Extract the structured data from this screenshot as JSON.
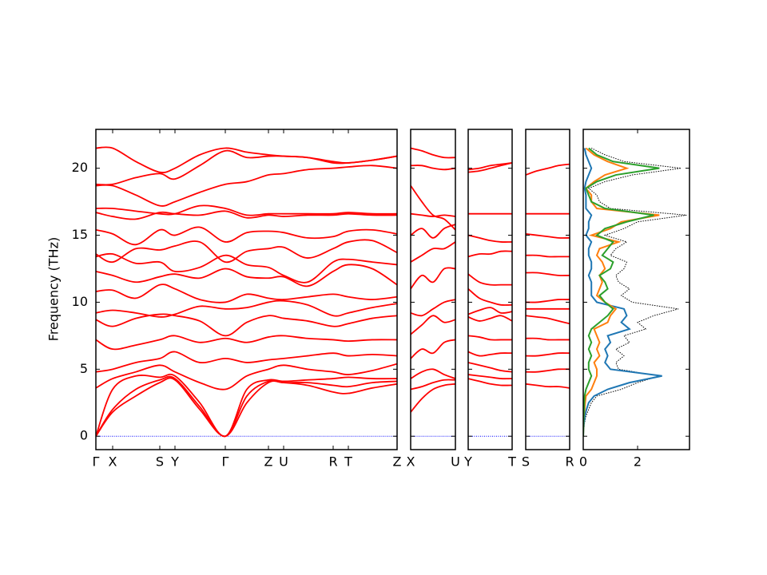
{
  "chart_data": [
    {
      "type": "line",
      "ylabel": "Frequency (THz)",
      "color": "#ff0000",
      "ylim": [
        -1,
        22.9
      ],
      "yticks": [
        0,
        5,
        10,
        15,
        20
      ],
      "xlim": [
        0,
        377
      ],
      "xticks": [
        {
          "value": 0,
          "label": "Γ"
        },
        {
          "value": 21,
          "label": "X"
        },
        {
          "value": 80,
          "label": "S"
        },
        {
          "value": 99,
          "label": "Y"
        },
        {
          "value": 162,
          "label": "Γ"
        },
        {
          "value": 216,
          "label": "Z"
        },
        {
          "value": 235,
          "label": "U"
        },
        {
          "value": 297,
          "label": "R"
        },
        {
          "value": 316,
          "label": "T"
        },
        {
          "value": 377,
          "label": "Z"
        }
      ],
      "x": [
        0,
        21,
        50,
        80,
        99,
        130,
        162,
        189,
        216,
        235,
        265,
        297,
        316,
        346,
        377
      ],
      "series": [
        {
          "values": [
            0,
            1.8,
            3.0,
            4.0,
            4.2,
            2.0,
            0,
            2.5,
            4.0,
            4.0,
            3.8,
            3.3,
            3.2,
            3.6,
            3.9
          ]
        },
        {
          "values": [
            0,
            2.0,
            3.5,
            4.2,
            4.3,
            2.2,
            0,
            3.0,
            4.1,
            4.0,
            4.0,
            3.8,
            3.7,
            4.0,
            4.1
          ]
        },
        {
          "values": [
            0,
            3.5,
            4.5,
            4.4,
            4.5,
            2.5,
            0,
            3.5,
            4.2,
            4.1,
            4.2,
            4.3,
            4.4,
            4.3,
            4.3
          ]
        },
        {
          "values": [
            3.6,
            4.3,
            4.8,
            5.3,
            4.8,
            4.0,
            3.5,
            4.5,
            5.0,
            5.3,
            5.0,
            4.8,
            4.6,
            4.9,
            5.4
          ]
        },
        {
          "values": [
            4.8,
            5.0,
            5.5,
            5.8,
            6.3,
            5.5,
            5.8,
            5.5,
            5.7,
            5.8,
            6.0,
            6.2,
            6.0,
            6.1,
            6.0
          ]
        },
        {
          "values": [
            7.2,
            6.5,
            6.8,
            7.2,
            7.5,
            7.0,
            7.3,
            7.0,
            7.4,
            7.5,
            7.3,
            7.2,
            7.1,
            7.2,
            7.2
          ]
        },
        {
          "values": [
            8.7,
            8.2,
            8.8,
            9.1,
            9.0,
            8.6,
            7.5,
            8.5,
            9.0,
            8.8,
            8.6,
            8.2,
            8.4,
            8.8,
            9.0
          ]
        },
        {
          "values": [
            9.2,
            9.4,
            9.2,
            8.9,
            9.1,
            9.7,
            9.5,
            9.6,
            10.0,
            10.1,
            9.8,
            9.0,
            9.2,
            9.6,
            9.9
          ]
        },
        {
          "values": [
            10.8,
            10.9,
            10.3,
            11.3,
            11.0,
            10.2,
            10.0,
            10.6,
            10.3,
            10.2,
            10.4,
            10.6,
            10.4,
            10.2,
            10.4
          ]
        },
        {
          "values": [
            12.3,
            12.0,
            11.5,
            11.9,
            12.1,
            11.8,
            12.5,
            11.9,
            11.8,
            11.9,
            11.2,
            12.3,
            12.8,
            12.5,
            11.3
          ]
        },
        {
          "values": [
            13.4,
            13.6,
            12.9,
            13.0,
            12.3,
            12.6,
            13.5,
            12.8,
            12.6,
            12.0,
            11.5,
            13.0,
            13.2,
            13.0,
            12.8
          ]
        },
        {
          "values": [
            13.6,
            13.0,
            14.0,
            13.9,
            14.2,
            14.5,
            13.0,
            13.8,
            14.0,
            14.1,
            13.3,
            14.0,
            14.5,
            14.6,
            13.7
          ]
        },
        {
          "values": [
            15.4,
            15.1,
            14.3,
            15.4,
            15.0,
            15.6,
            14.5,
            15.2,
            15.3,
            15.2,
            14.8,
            14.9,
            15.3,
            15.4,
            15.1
          ]
        },
        {
          "values": [
            16.7,
            16.4,
            16.2,
            16.7,
            16.6,
            16.5,
            16.8,
            16.3,
            16.5,
            16.4,
            16.5,
            16.5,
            16.6,
            16.5,
            16.5
          ]
        },
        {
          "values": [
            17.0,
            17.0,
            16.8,
            16.6,
            16.6,
            17.2,
            17.0,
            16.5,
            16.6,
            16.6,
            16.6,
            16.6,
            16.7,
            16.6,
            16.6
          ]
        },
        {
          "values": [
            18.7,
            18.7,
            18.0,
            17.2,
            17.5,
            18.2,
            18.8,
            19.0,
            19.5,
            19.6,
            19.9,
            20.0,
            20.1,
            20.2,
            20.0
          ]
        },
        {
          "values": [
            18.8,
            18.8,
            19.3,
            19.6,
            19.2,
            20.2,
            21.3,
            20.8,
            20.9,
            20.9,
            20.8,
            20.5,
            20.4,
            20.6,
            20.9
          ]
        },
        {
          "values": [
            21.5,
            21.5,
            20.5,
            19.7,
            20.0,
            21.0,
            21.5,
            21.2,
            21.0,
            20.9,
            20.8,
            20.4,
            20.4,
            20.6,
            20.9
          ]
        }
      ]
    },
    {
      "type": "line",
      "color": "#ff0000",
      "xlim": [
        0,
        56
      ],
      "xticks": [
        {
          "value": 0,
          "label": "X"
        },
        {
          "value": 56,
          "label": "U"
        }
      ],
      "x": [
        0,
        14,
        28,
        42,
        56
      ],
      "series": [
        {
          "values": [
            1.8,
            2.8,
            3.5,
            3.8,
            3.9
          ]
        },
        {
          "values": [
            3.5,
            3.7,
            4.0,
            4.2,
            4.2
          ]
        },
        {
          "values": [
            4.3,
            4.8,
            5.0,
            4.6,
            4.3
          ]
        },
        {
          "values": [
            5.8,
            6.5,
            6.2,
            7.0,
            7.2
          ]
        },
        {
          "values": [
            7.6,
            8.3,
            9.0,
            8.5,
            8.7
          ]
        },
        {
          "values": [
            9.2,
            9.0,
            9.5,
            10.0,
            10.2
          ]
        },
        {
          "values": [
            11.0,
            12.0,
            11.5,
            12.5,
            12.5
          ]
        },
        {
          "values": [
            13.0,
            13.5,
            14.0,
            14.0,
            14.5
          ]
        },
        {
          "values": [
            15.0,
            15.5,
            14.8,
            15.5,
            15.8
          ]
        },
        {
          "values": [
            16.6,
            16.5,
            16.4,
            16.5,
            16.4
          ]
        },
        {
          "values": [
            18.7,
            17.5,
            16.5,
            16.2,
            15.4
          ]
        },
        {
          "values": [
            21.5,
            21.3,
            21.0,
            20.8,
            20.8
          ]
        },
        {
          "values": [
            20.2,
            20.2,
            20.0,
            19.9,
            20.0
          ]
        }
      ]
    },
    {
      "type": "line",
      "color": "#ff0000",
      "xlim": [
        0,
        55
      ],
      "xticks": [
        {
          "value": 0,
          "label": "Y"
        },
        {
          "value": 55,
          "label": "T"
        }
      ],
      "x": [
        0,
        14,
        28,
        41,
        55
      ],
      "series": [
        {
          "values": [
            4.3,
            4.1,
            3.9,
            3.8,
            3.8
          ]
        },
        {
          "values": [
            4.6,
            4.5,
            4.4,
            4.3,
            4.3
          ]
        },
        {
          "values": [
            5.5,
            5.3,
            5.1,
            4.9,
            4.8
          ]
        },
        {
          "values": [
            6.3,
            6.0,
            6.1,
            6.2,
            6.2
          ]
        },
        {
          "values": [
            7.5,
            7.4,
            7.2,
            7.2,
            7.2
          ]
        },
        {
          "values": [
            8.9,
            8.6,
            8.8,
            9.0,
            8.6
          ]
        },
        {
          "values": [
            9.1,
            9.4,
            9.6,
            9.2,
            9.3
          ]
        },
        {
          "values": [
            11.0,
            10.3,
            10.0,
            9.8,
            9.8
          ]
        },
        {
          "values": [
            12.1,
            11.5,
            11.3,
            11.3,
            11.3
          ]
        },
        {
          "values": [
            13.4,
            13.6,
            13.6,
            13.8,
            13.8
          ]
        },
        {
          "values": [
            15.0,
            14.8,
            14.6,
            14.5,
            14.5
          ]
        },
        {
          "values": [
            16.6,
            16.6,
            16.6,
            16.6,
            16.6
          ]
        },
        {
          "values": [
            19.7,
            19.8,
            20.0,
            20.2,
            20.4
          ]
        },
        {
          "values": [
            19.9,
            20.0,
            20.2,
            20.3,
            20.4
          ]
        }
      ]
    },
    {
      "type": "line",
      "color": "#ff0000",
      "xlim": [
        0,
        55
      ],
      "xticks": [
        {
          "value": 0,
          "label": "S"
        },
        {
          "value": 55,
          "label": "R"
        }
      ],
      "x": [
        0,
        14,
        28,
        41,
        55
      ],
      "series": [
        {
          "values": [
            3.9,
            3.8,
            3.7,
            3.7,
            3.6
          ]
        },
        {
          "values": [
            4.8,
            4.8,
            4.9,
            5.0,
            5.0
          ]
        },
        {
          "values": [
            6.0,
            6.0,
            6.1,
            6.2,
            6.2
          ]
        },
        {
          "values": [
            7.3,
            7.3,
            7.2,
            7.2,
            7.2
          ]
        },
        {
          "values": [
            9.0,
            8.9,
            8.8,
            8.6,
            8.4
          ]
        },
        {
          "values": [
            9.5,
            9.5,
            9.5,
            9.5,
            9.5
          ]
        },
        {
          "values": [
            10.0,
            10.0,
            10.1,
            10.2,
            10.2
          ]
        },
        {
          "values": [
            12.2,
            12.2,
            12.1,
            12.0,
            12.0
          ]
        },
        {
          "values": [
            13.5,
            13.5,
            13.4,
            13.4,
            13.4
          ]
        },
        {
          "values": [
            15.1,
            15.0,
            14.9,
            14.8,
            14.8
          ]
        },
        {
          "values": [
            16.6,
            16.6,
            16.6,
            16.6,
            16.6
          ]
        },
        {
          "values": [
            19.5,
            19.8,
            20.0,
            20.2,
            20.3
          ]
        }
      ]
    },
    {
      "type": "line",
      "xlim": [
        0,
        3.91
      ],
      "xticks": [
        0,
        2
      ],
      "y": [
        0,
        0.5,
        1,
        1.5,
        2,
        2.5,
        3,
        3.5,
        4,
        4.5,
        5,
        5.5,
        6,
        6.5,
        7,
        7.5,
        8,
        8.5,
        9,
        9.5,
        10,
        10.5,
        11,
        11.5,
        12,
        12.5,
        13,
        13.5,
        14,
        14.5,
        15,
        15.5,
        16,
        16.5,
        17,
        17.5,
        18,
        18.5,
        19,
        19.5,
        20,
        20.5,
        21,
        21.5
      ],
      "series": [
        {
          "color": "#000000",
          "linestyle": "dotted",
          "values": [
            0,
            0.02,
            0.05,
            0.1,
            0.2,
            0.3,
            0.5,
            1.4,
            2.0,
            2.8,
            1.3,
            1.2,
            1.5,
            1.2,
            1.7,
            1.5,
            2.3,
            2.0,
            2.6,
            3.5,
            1.8,
            1.4,
            1.7,
            1.3,
            1.2,
            1.5,
            1.6,
            1.0,
            1.2,
            1.6,
            0.8,
            1.5,
            2.0,
            3.8,
            1.0,
            0.6,
            0.5,
            0.2,
            0.8,
            1.8,
            3.6,
            1.5,
            0.8,
            0.3
          ]
        },
        {
          "color": "#1f77b4",
          "linestyle": "solid",
          "values": [
            0,
            0.01,
            0.03,
            0.06,
            0.12,
            0.2,
            0.4,
            0.9,
            1.7,
            2.9,
            1.0,
            0.8,
            0.9,
            0.8,
            1.0,
            0.9,
            1.7,
            1.4,
            1.6,
            1.5,
            0.5,
            0.3,
            0.3,
            0.3,
            0.2,
            0.3,
            0.3,
            0.2,
            0.2,
            0.3,
            0.1,
            0.2,
            0.2,
            0.3,
            0.1,
            0.1,
            0.1,
            0.05,
            0.1,
            0.2,
            0.3,
            0.2,
            0.1,
            0.05
          ]
        },
        {
          "color": "#ff7f0e",
          "linestyle": "solid",
          "values": [
            0,
            0.005,
            0.01,
            0.02,
            0.05,
            0.07,
            0.1,
            0.3,
            0.4,
            0.5,
            0.5,
            0.4,
            0.6,
            0.5,
            0.6,
            0.5,
            0.4,
            0.9,
            1.0,
            1.2,
            0.8,
            0.5,
            0.6,
            0.7,
            0.6,
            0.8,
            0.7,
            0.5,
            0.6,
            1.3,
            0.3,
            1.0,
            1.4,
            2.8,
            0.5,
            0.3,
            0.3,
            0.1,
            0.4,
            0.8,
            1.6,
            0.9,
            0.4,
            0.1
          ]
        },
        {
          "color": "#2ca02c",
          "linestyle": "solid",
          "values": [
            0,
            0.005,
            0.01,
            0.02,
            0.03,
            0.04,
            0.05,
            0.1,
            0.2,
            0.3,
            0.2,
            0.2,
            0.3,
            0.2,
            0.3,
            0.2,
            0.3,
            0.6,
            0.9,
            1.1,
            0.8,
            0.6,
            0.9,
            0.8,
            0.6,
            1.0,
            1.1,
            0.7,
            0.9,
            1.1,
            0.5,
            0.8,
            1.6,
            2.6,
            0.8,
            0.3,
            0.2,
            0.1,
            0.5,
            1.2,
            2.8,
            1.1,
            0.5,
            0.2
          ]
        }
      ]
    }
  ]
}
